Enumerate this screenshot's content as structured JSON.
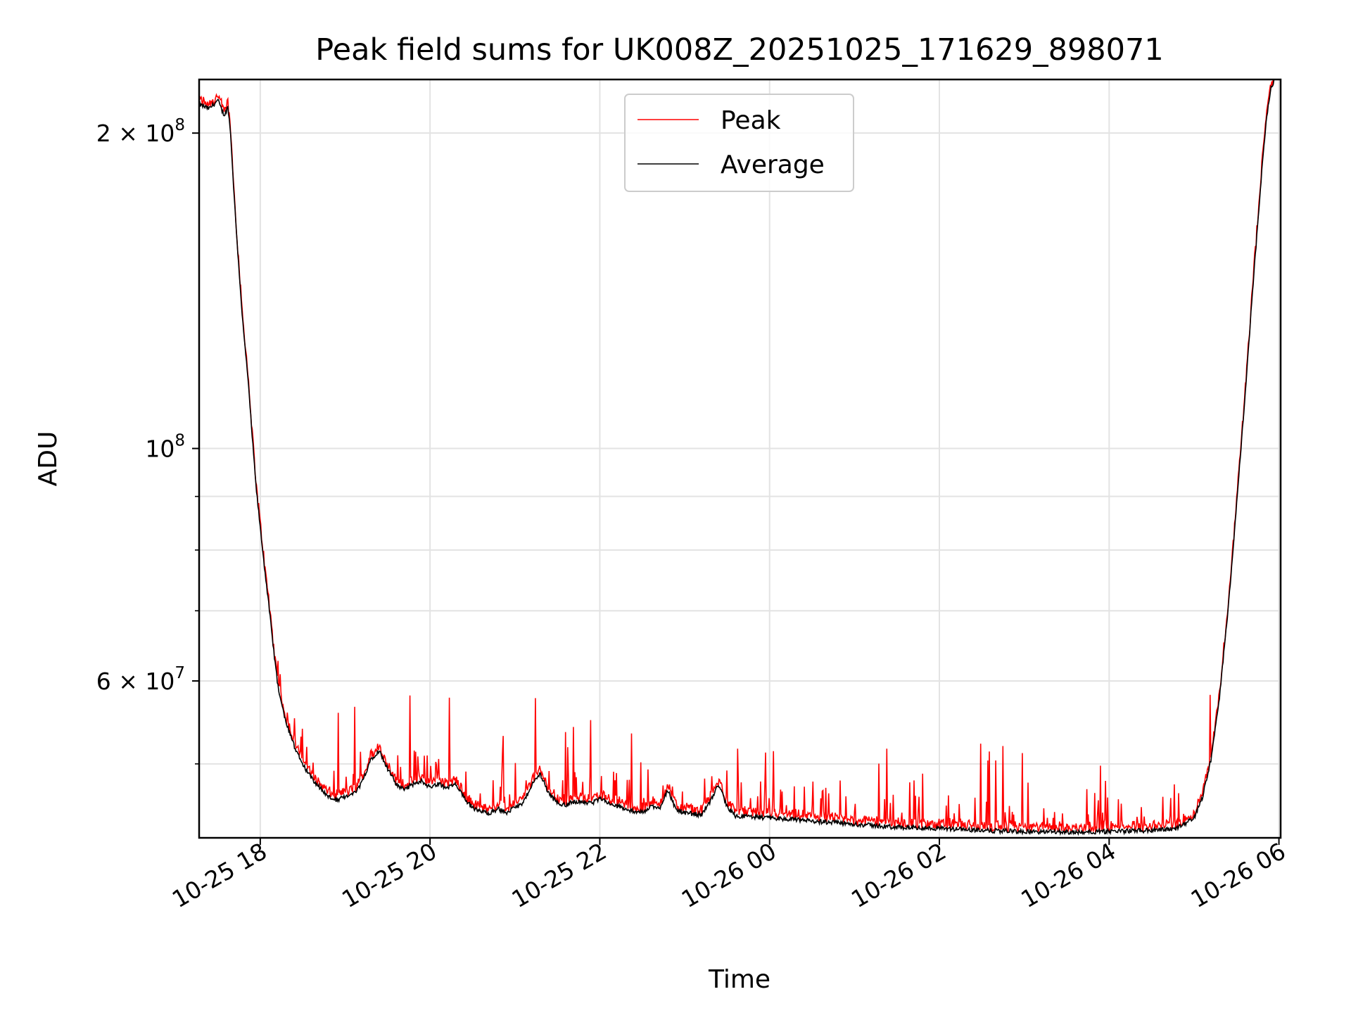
{
  "chart_data": {
    "type": "line",
    "title": "Peak field sums for UK008Z_20251025_171629_898071",
    "xlabel": "Time",
    "ylabel": "ADU",
    "yscale": "log",
    "grid": true,
    "legend_position": "upper-center",
    "xlim_hours": [
      -0.72,
      12.02
    ],
    "ylim": [
      42500000,
      225000000
    ],
    "x_ticks": [
      {
        "hour": 0,
        "label": "10-25 18"
      },
      {
        "hour": 2,
        "label": "10-25 20"
      },
      {
        "hour": 4,
        "label": "10-25 22"
      },
      {
        "hour": 6,
        "label": "10-26 00"
      },
      {
        "hour": 8,
        "label": "10-26 02"
      },
      {
        "hour": 10,
        "label": "10-26 04"
      },
      {
        "hour": 12,
        "label": "10-26 06"
      }
    ],
    "y_major_ticks": [
      {
        "value": 60000000,
        "mant": "6 × 10",
        "exp": "7"
      },
      {
        "value": 100000000,
        "mant": "10",
        "exp": "8"
      },
      {
        "value": 200000000,
        "mant": "2 × 10",
        "exp": "8"
      }
    ],
    "y_minor_ticks": [
      50000000,
      70000000,
      80000000,
      90000000
    ],
    "series": [
      {
        "name": "Peak",
        "color": "#ff0000"
      },
      {
        "name": "Average",
        "color": "#000000"
      }
    ],
    "average_points": [
      [
        -0.72,
        213000000
      ],
      [
        -0.6,
        211000000
      ],
      [
        -0.5,
        215000000
      ],
      [
        -0.45,
        210000000
      ],
      [
        -0.42,
        208000000
      ],
      [
        -0.38,
        212000000
      ],
      [
        -0.35,
        200000000
      ],
      [
        -0.3,
        170000000
      ],
      [
        -0.25,
        148000000
      ],
      [
        -0.2,
        130000000
      ],
      [
        -0.15,
        118000000
      ],
      [
        -0.1,
        104000000
      ],
      [
        -0.05,
        92000000
      ],
      [
        0.0,
        84000000
      ],
      [
        0.05,
        77000000
      ],
      [
        0.1,
        71000000
      ],
      [
        0.15,
        65000000
      ],
      [
        0.2,
        60000000
      ],
      [
        0.25,
        57000000
      ],
      [
        0.3,
        55000000
      ],
      [
        0.4,
        52000000
      ],
      [
        0.5,
        50000000
      ],
      [
        0.6,
        48500000
      ],
      [
        0.7,
        47500000
      ],
      [
        0.8,
        46500000
      ],
      [
        0.9,
        46200000
      ],
      [
        1.0,
        46500000
      ],
      [
        1.1,
        46800000
      ],
      [
        1.2,
        48000000
      ],
      [
        1.3,
        50500000
      ],
      [
        1.4,
        51500000
      ],
      [
        1.5,
        49500000
      ],
      [
        1.6,
        47800000
      ],
      [
        1.7,
        47300000
      ],
      [
        1.8,
        47800000
      ],
      [
        1.9,
        48200000
      ],
      [
        2.0,
        47500000
      ],
      [
        2.1,
        47900000
      ],
      [
        2.2,
        47400000
      ],
      [
        2.3,
        47800000
      ],
      [
        2.4,
        46400000
      ],
      [
        2.5,
        45400000
      ],
      [
        2.6,
        45000000
      ],
      [
        2.7,
        44900000
      ],
      [
        2.8,
        45300000
      ],
      [
        2.9,
        44900000
      ],
      [
        3.0,
        45400000
      ],
      [
        3.1,
        45900000
      ],
      [
        3.2,
        47800000
      ],
      [
        3.3,
        48900000
      ],
      [
        3.4,
        46800000
      ],
      [
        3.5,
        45900000
      ],
      [
        3.6,
        45700000
      ],
      [
        3.7,
        46000000
      ],
      [
        3.8,
        46100000
      ],
      [
        3.9,
        45800000
      ],
      [
        4.0,
        46300000
      ],
      [
        4.1,
        45900000
      ],
      [
        4.2,
        45600000
      ],
      [
        4.3,
        45300000
      ],
      [
        4.4,
        45100000
      ],
      [
        4.5,
        44900000
      ],
      [
        4.6,
        45600000
      ],
      [
        4.7,
        45300000
      ],
      [
        4.8,
        47200000
      ],
      [
        4.9,
        45200000
      ],
      [
        5.0,
        44900000
      ],
      [
        5.1,
        44800000
      ],
      [
        5.2,
        44700000
      ],
      [
        5.3,
        46000000
      ],
      [
        5.4,
        47800000
      ],
      [
        5.5,
        45500000
      ],
      [
        5.6,
        44600000
      ],
      [
        5.8,
        44500000
      ],
      [
        6.0,
        44400000
      ],
      [
        6.2,
        44300000
      ],
      [
        6.5,
        44100000
      ],
      [
        7.0,
        43800000
      ],
      [
        7.5,
        43500000
      ],
      [
        8.0,
        43400000
      ],
      [
        8.5,
        43200000
      ],
      [
        9.0,
        43100000
      ],
      [
        9.5,
        43050000
      ],
      [
        10.0,
        43100000
      ],
      [
        10.5,
        43200000
      ],
      [
        10.8,
        43400000
      ],
      [
        11.0,
        44400000
      ],
      [
        11.1,
        46500000
      ],
      [
        11.2,
        50500000
      ],
      [
        11.3,
        58000000
      ],
      [
        11.4,
        70000000
      ],
      [
        11.5,
        88000000
      ],
      [
        11.6,
        112000000
      ],
      [
        11.7,
        145000000
      ],
      [
        11.8,
        185000000
      ],
      [
        11.85,
        205000000
      ],
      [
        11.9,
        220000000
      ],
      [
        11.95,
        225000000
      ]
    ]
  }
}
